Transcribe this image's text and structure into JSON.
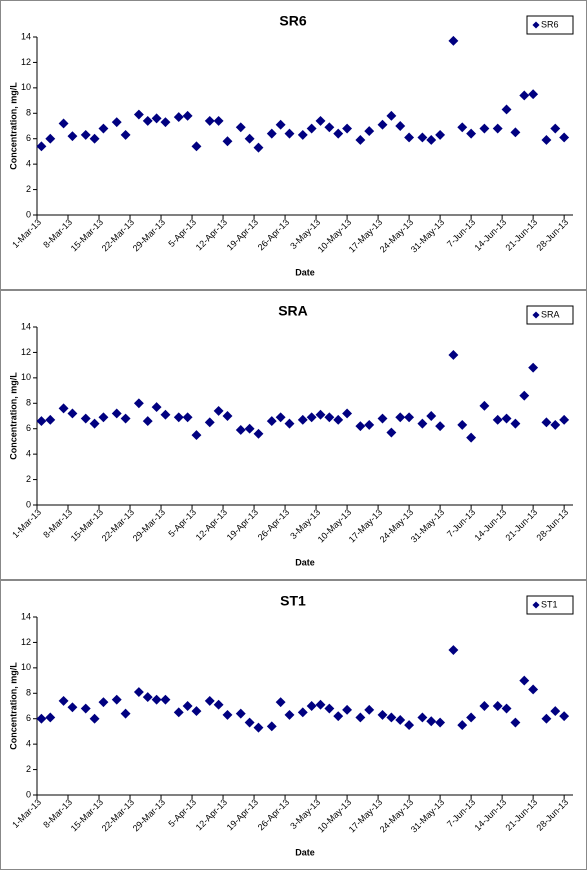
{
  "chart_data": [
    {
      "type": "scatter",
      "title": "SR6",
      "x_label": "Date",
      "y_label": "Concentration, mg/L",
      "legend": "top-right",
      "x": [
        "2013-03-02",
        "2013-03-04",
        "2013-03-07",
        "2013-03-09",
        "2013-03-12",
        "2013-03-14",
        "2013-03-16",
        "2013-03-19",
        "2013-03-21",
        "2013-03-24",
        "2013-03-26",
        "2013-03-28",
        "2013-03-30",
        "2013-04-02",
        "2013-04-04",
        "2013-04-06",
        "2013-04-09",
        "2013-04-11",
        "2013-04-13",
        "2013-04-16",
        "2013-04-18",
        "2013-04-20",
        "2013-04-23",
        "2013-04-25",
        "2013-04-27",
        "2013-04-30",
        "2013-05-02",
        "2013-05-04",
        "2013-05-06",
        "2013-05-08",
        "2013-05-10",
        "2013-05-13",
        "2013-05-15",
        "2013-05-18",
        "2013-05-20",
        "2013-05-22",
        "2013-05-24",
        "2013-05-27",
        "2013-05-29",
        "2013-05-31",
        "2013-06-03",
        "2013-06-05",
        "2013-06-07",
        "2013-06-10",
        "2013-06-13",
        "2013-06-15",
        "2013-06-17",
        "2013-06-19",
        "2013-06-21",
        "2013-06-24",
        "2013-06-26",
        "2013-06-28"
      ],
      "series": [
        {
          "name": "SR6",
          "color": "#000080",
          "values": [
            5.4,
            6.0,
            7.2,
            6.2,
            6.3,
            6.0,
            6.8,
            7.3,
            6.3,
            7.9,
            7.4,
            7.6,
            7.3,
            7.7,
            7.8,
            5.4,
            7.4,
            7.4,
            5.8,
            6.9,
            6.0,
            5.3,
            6.4,
            7.1,
            6.4,
            6.3,
            6.8,
            7.4,
            6.9,
            6.4,
            6.8,
            5.9,
            6.6,
            7.1,
            7.8,
            7.0,
            6.1,
            6.1,
            5.9,
            6.3,
            13.7,
            6.9,
            6.4,
            6.8,
            6.8,
            8.3,
            6.5,
            9.4,
            9.5,
            5.9,
            6.8,
            6.1
          ]
        }
      ],
      "xlim": [
        "2013-03-01",
        "2013-06-30"
      ],
      "ylim": [
        0,
        14
      ],
      "yticks": [
        0,
        2,
        4,
        6,
        8,
        10,
        12,
        14
      ],
      "xticks": [
        {
          "value": "2013-03-01",
          "label": "1-Mar-13"
        },
        {
          "value": "2013-03-08",
          "label": "8-Mar-13"
        },
        {
          "value": "2013-03-15",
          "label": "15-Mar-13"
        },
        {
          "value": "2013-03-22",
          "label": "22-Mar-13"
        },
        {
          "value": "2013-03-29",
          "label": "29-Mar-13"
        },
        {
          "value": "2013-04-05",
          "label": "5-Apr-13"
        },
        {
          "value": "2013-04-12",
          "label": "12-Apr-13"
        },
        {
          "value": "2013-04-19",
          "label": "19-Apr-13"
        },
        {
          "value": "2013-04-26",
          "label": "26-Apr-13"
        },
        {
          "value": "2013-05-03",
          "label": "3-May-13"
        },
        {
          "value": "2013-05-10",
          "label": "10-May-13"
        },
        {
          "value": "2013-05-17",
          "label": "17-May-13"
        },
        {
          "value": "2013-05-24",
          "label": "24-May-13"
        },
        {
          "value": "2013-05-31",
          "label": "31-May-13"
        },
        {
          "value": "2013-06-07",
          "label": "7-Jun-13"
        },
        {
          "value": "2013-06-14",
          "label": "14-Jun-13"
        },
        {
          "value": "2013-06-21",
          "label": "21-Jun-13"
        },
        {
          "value": "2013-06-28",
          "label": "28-Jun-13"
        }
      ]
    },
    {
      "type": "scatter",
      "title": "SRA",
      "x_label": "Date",
      "y_label": "Concentration, mg/L",
      "legend": "top-right",
      "x": [
        "2013-03-02",
        "2013-03-04",
        "2013-03-07",
        "2013-03-09",
        "2013-03-12",
        "2013-03-14",
        "2013-03-16",
        "2013-03-19",
        "2013-03-21",
        "2013-03-24",
        "2013-03-26",
        "2013-03-28",
        "2013-03-30",
        "2013-04-02",
        "2013-04-04",
        "2013-04-06",
        "2013-04-09",
        "2013-04-11",
        "2013-04-13",
        "2013-04-16",
        "2013-04-18",
        "2013-04-20",
        "2013-04-23",
        "2013-04-25",
        "2013-04-27",
        "2013-04-30",
        "2013-05-02",
        "2013-05-04",
        "2013-05-06",
        "2013-05-08",
        "2013-05-10",
        "2013-05-13",
        "2013-05-15",
        "2013-05-18",
        "2013-05-20",
        "2013-05-22",
        "2013-05-24",
        "2013-05-27",
        "2013-05-29",
        "2013-05-31",
        "2013-06-03",
        "2013-06-05",
        "2013-06-07",
        "2013-06-10",
        "2013-06-13",
        "2013-06-15",
        "2013-06-17",
        "2013-06-19",
        "2013-06-21",
        "2013-06-24",
        "2013-06-26",
        "2013-06-28"
      ],
      "series": [
        {
          "name": "SRA",
          "color": "#000080",
          "values": [
            6.6,
            6.7,
            7.6,
            7.2,
            6.8,
            6.4,
            6.9,
            7.2,
            6.8,
            8.0,
            6.6,
            7.7,
            7.1,
            6.9,
            6.9,
            5.5,
            6.5,
            7.4,
            7.0,
            5.9,
            6.0,
            5.6,
            6.6,
            6.9,
            6.4,
            6.7,
            6.9,
            7.1,
            6.9,
            6.7,
            7.2,
            6.2,
            6.3,
            6.8,
            5.7,
            6.9,
            6.9,
            6.4,
            7.0,
            6.2,
            11.8,
            6.3,
            5.3,
            7.8,
            6.7,
            6.8,
            6.4,
            8.6,
            10.8,
            6.5,
            6.3,
            6.7
          ]
        }
      ],
      "xlim": [
        "2013-03-01",
        "2013-06-30"
      ],
      "ylim": [
        0,
        14
      ],
      "yticks": [
        0,
        2,
        4,
        6,
        8,
        10,
        12,
        14
      ],
      "xticks": [
        {
          "value": "2013-03-01",
          "label": "1-Mar-13"
        },
        {
          "value": "2013-03-08",
          "label": "8-Mar-13"
        },
        {
          "value": "2013-03-15",
          "label": "15-Mar-13"
        },
        {
          "value": "2013-03-22",
          "label": "22-Mar-13"
        },
        {
          "value": "2013-03-29",
          "label": "29-Mar-13"
        },
        {
          "value": "2013-04-05",
          "label": "5-Apr-13"
        },
        {
          "value": "2013-04-12",
          "label": "12-Apr-13"
        },
        {
          "value": "2013-04-19",
          "label": "19-Apr-13"
        },
        {
          "value": "2013-04-26",
          "label": "26-Apr-13"
        },
        {
          "value": "2013-05-03",
          "label": "3-May-13"
        },
        {
          "value": "2013-05-10",
          "label": "10-May-13"
        },
        {
          "value": "2013-05-17",
          "label": "17-May-13"
        },
        {
          "value": "2013-05-24",
          "label": "24-May-13"
        },
        {
          "value": "2013-05-31",
          "label": "31-May-13"
        },
        {
          "value": "2013-06-07",
          "label": "7-Jun-13"
        },
        {
          "value": "2013-06-14",
          "label": "14-Jun-13"
        },
        {
          "value": "2013-06-21",
          "label": "21-Jun-13"
        },
        {
          "value": "2013-06-28",
          "label": "28-Jun-13"
        }
      ]
    },
    {
      "type": "scatter",
      "title": "ST1",
      "x_label": "Date",
      "y_label": "Concentration, mg/L",
      "legend": "top-right",
      "x": [
        "2013-03-02",
        "2013-03-04",
        "2013-03-07",
        "2013-03-09",
        "2013-03-12",
        "2013-03-14",
        "2013-03-16",
        "2013-03-19",
        "2013-03-21",
        "2013-03-24",
        "2013-03-26",
        "2013-03-28",
        "2013-03-30",
        "2013-04-02",
        "2013-04-04",
        "2013-04-06",
        "2013-04-09",
        "2013-04-11",
        "2013-04-13",
        "2013-04-16",
        "2013-04-18",
        "2013-04-20",
        "2013-04-23",
        "2013-04-25",
        "2013-04-27",
        "2013-04-30",
        "2013-05-02",
        "2013-05-04",
        "2013-05-06",
        "2013-05-08",
        "2013-05-10",
        "2013-05-13",
        "2013-05-15",
        "2013-05-18",
        "2013-05-20",
        "2013-05-22",
        "2013-05-24",
        "2013-05-27",
        "2013-05-29",
        "2013-05-31",
        "2013-06-03",
        "2013-06-05",
        "2013-06-07",
        "2013-06-10",
        "2013-06-13",
        "2013-06-15",
        "2013-06-17",
        "2013-06-19",
        "2013-06-21",
        "2013-06-24",
        "2013-06-26",
        "2013-06-28"
      ],
      "series": [
        {
          "name": "ST1",
          "color": "#000080",
          "values": [
            6.0,
            6.1,
            7.4,
            6.9,
            6.8,
            6.0,
            7.3,
            7.5,
            6.4,
            8.1,
            7.7,
            7.5,
            7.5,
            6.5,
            7.0,
            6.6,
            7.4,
            7.1,
            6.3,
            6.4,
            5.7,
            5.3,
            5.4,
            7.3,
            6.3,
            6.5,
            7.0,
            7.1,
            6.8,
            6.2,
            6.7,
            6.1,
            6.7,
            6.3,
            6.1,
            5.9,
            5.5,
            6.1,
            5.8,
            5.7,
            11.4,
            5.5,
            6.1,
            7.0,
            7.0,
            6.8,
            5.7,
            9.0,
            8.3,
            6.0,
            6.6,
            6.2
          ]
        }
      ],
      "xlim": [
        "2013-03-01",
        "2013-06-30"
      ],
      "ylim": [
        0,
        14
      ],
      "yticks": [
        0,
        2,
        4,
        6,
        8,
        10,
        12,
        14
      ],
      "xticks": [
        {
          "value": "2013-03-01",
          "label": "1-Mar-13"
        },
        {
          "value": "2013-03-08",
          "label": "8-Mar-13"
        },
        {
          "value": "2013-03-15",
          "label": "15-Mar-13"
        },
        {
          "value": "2013-03-22",
          "label": "22-Mar-13"
        },
        {
          "value": "2013-03-29",
          "label": "29-Mar-13"
        },
        {
          "value": "2013-04-05",
          "label": "5-Apr-13"
        },
        {
          "value": "2013-04-12",
          "label": "12-Apr-13"
        },
        {
          "value": "2013-04-19",
          "label": "19-Apr-13"
        },
        {
          "value": "2013-04-26",
          "label": "26-Apr-13"
        },
        {
          "value": "2013-05-03",
          "label": "3-May-13"
        },
        {
          "value": "2013-05-10",
          "label": "10-May-13"
        },
        {
          "value": "2013-05-17",
          "label": "17-May-13"
        },
        {
          "value": "2013-05-24",
          "label": "24-May-13"
        },
        {
          "value": "2013-05-31",
          "label": "31-May-13"
        },
        {
          "value": "2013-06-07",
          "label": "7-Jun-13"
        },
        {
          "value": "2013-06-14",
          "label": "14-Jun-13"
        },
        {
          "value": "2013-06-21",
          "label": "21-Jun-13"
        },
        {
          "value": "2013-06-28",
          "label": "28-Jun-13"
        }
      ]
    }
  ]
}
